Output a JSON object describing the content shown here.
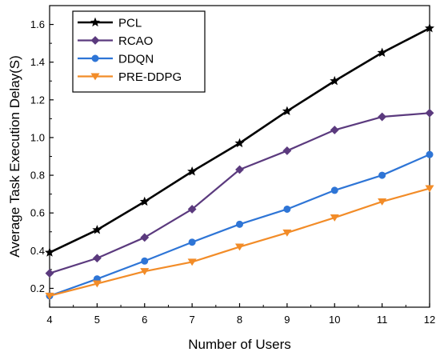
{
  "chart_data": {
    "type": "line",
    "xlabel": "Number of Users",
    "ylabel": "Average Task Execution Delay(S)",
    "x": [
      4,
      5,
      6,
      7,
      8,
      9,
      10,
      11,
      12
    ],
    "xlim": [
      4,
      12
    ],
    "ylim": [
      0.1,
      1.7
    ],
    "yticks": [
      0.2,
      0.4,
      0.6,
      0.8,
      1.0,
      1.2,
      1.4,
      1.6
    ],
    "ytick_labels": [
      "0.2",
      "0.4",
      "0.6",
      "0.8",
      "1.0",
      "1.2",
      "1.4",
      "1.6"
    ],
    "xticks": [
      4,
      5,
      6,
      7,
      8,
      9,
      10,
      11,
      12
    ],
    "xtick_labels": [
      "4",
      "5",
      "6",
      "7",
      "8",
      "9",
      "10",
      "11",
      "12"
    ],
    "grid": false,
    "legend_position": "top-left",
    "series": [
      {
        "name": "PCL",
        "color": "#000000",
        "marker": "star",
        "values": [
          0.39,
          0.51,
          0.66,
          0.82,
          0.97,
          1.14,
          1.3,
          1.45,
          1.58
        ]
      },
      {
        "name": "RCAO",
        "color": "#5B3A7E",
        "marker": "diamond",
        "values": [
          0.28,
          0.36,
          0.47,
          0.62,
          0.83,
          0.93,
          1.04,
          1.11,
          1.13
        ]
      },
      {
        "name": "DDQN",
        "color": "#2E75D6",
        "marker": "circle",
        "values": [
          0.16,
          0.25,
          0.345,
          0.445,
          0.54,
          0.62,
          0.72,
          0.8,
          0.91
        ]
      },
      {
        "name": "PRE-DDPG",
        "color": "#F28C28",
        "marker": "triangle-down",
        "values": [
          0.16,
          0.225,
          0.29,
          0.34,
          0.42,
          0.495,
          0.575,
          0.66,
          0.73
        ]
      }
    ]
  }
}
